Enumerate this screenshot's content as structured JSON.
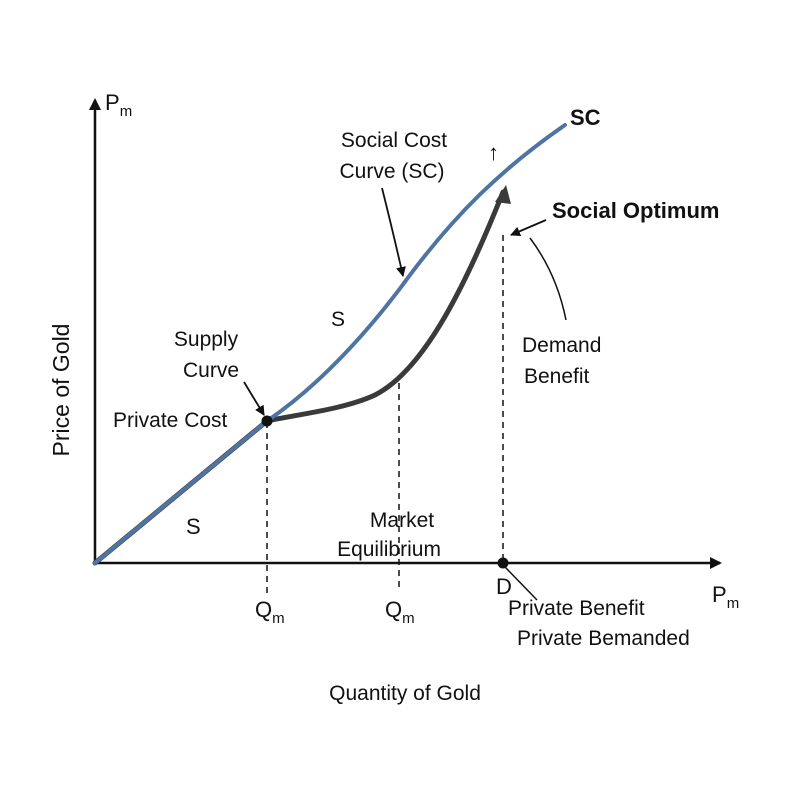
{
  "colors": {
    "social_cost_curve": "#4f74a3",
    "supply_curve": "#3a3a3a",
    "axes": "#111111",
    "background": "#ffffff"
  },
  "axes": {
    "y_label": "Price of Gold",
    "x_label": "Quantity of Gold",
    "y_symbol": "P",
    "y_symbol_sub": "m",
    "x_symbol": "P",
    "x_symbol_sub": "m"
  },
  "ticks": {
    "q1": "Q",
    "q1_sub": "m",
    "q2": "Q",
    "q2_sub": "m",
    "d": "D"
  },
  "annotations": {
    "sc_tag": "SC",
    "social_cost_line1": "Social Cost",
    "social_cost_line2": "Curve (SC)",
    "up_arrow": "↑",
    "social_optimum": "Social Optimum",
    "demand_line1": "Demand",
    "demand_line2": "Benefit",
    "s_upper": "S",
    "supply_line1": "Supply",
    "supply_line2": "Curve",
    "private_cost": "Private Cost",
    "s_lower": "S",
    "market_line1": "Market",
    "market_line2": "Equilibrium",
    "private_benefit": "Private Benefit",
    "private_bemanded": "Private Bemanded"
  }
}
